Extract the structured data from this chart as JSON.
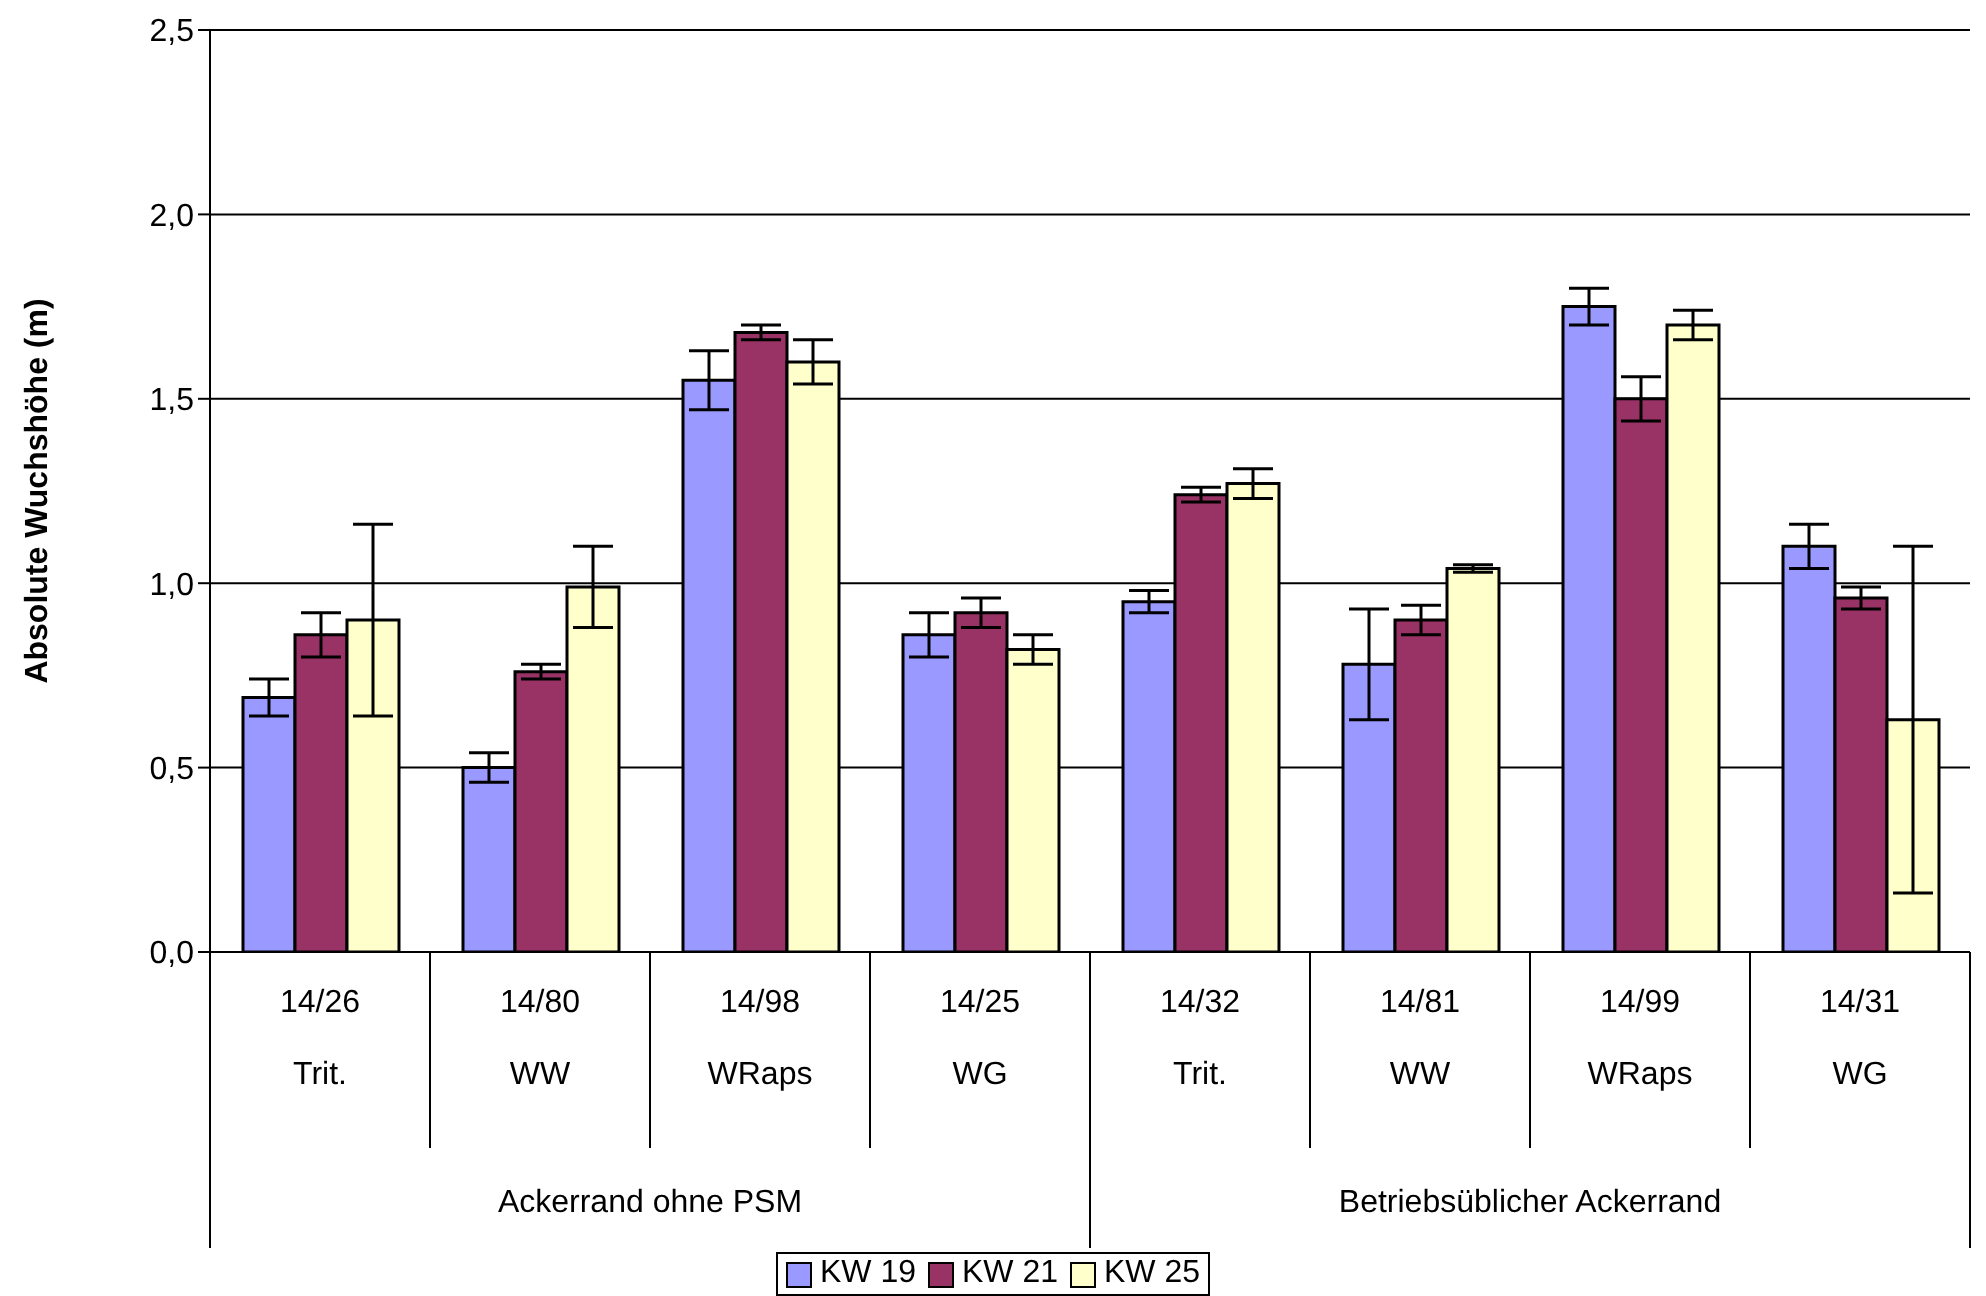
{
  "chart_data": {
    "type": "bar",
    "ylabel": "Absolute Wuchshöhe (m)",
    "categories": [
      "14/26\nTrit.",
      "14/80\nWW",
      "14/98\nWRaps",
      "14/25\nWG",
      "14/32\nTrit.",
      "14/81\nWW",
      "14/99\nWRaps",
      "14/31\nWG"
    ],
    "annotations": [
      "Ackerrand ohne PSM",
      "Betriebsüblicher Ackerrand"
    ],
    "series": [
      {
        "name": "KW 19",
        "color": "#9999ff",
        "values": [
          0.69,
          0.5,
          1.55,
          0.86,
          0.95,
          0.78,
          1.75,
          1.1
        ],
        "errors": [
          0.05,
          0.04,
          0.08,
          0.06,
          0.03,
          0.15,
          0.05,
          0.06
        ]
      },
      {
        "name": "KW 21",
        "color": "#993366",
        "values": [
          0.86,
          0.76,
          1.68,
          0.92,
          1.24,
          0.9,
          1.5,
          0.96
        ],
        "errors": [
          0.06,
          0.02,
          0.02,
          0.04,
          0.02,
          0.04,
          0.06,
          0.03
        ]
      },
      {
        "name": "KW 25",
        "color": "#ffffcc",
        "values": [
          0.9,
          0.99,
          1.6,
          0.82,
          1.27,
          1.04,
          1.7,
          0.63
        ],
        "errors": [
          0.26,
          0.11,
          0.06,
          0.04,
          0.04,
          0.01,
          0.04,
          0.47
        ]
      }
    ],
    "ylim": [
      0,
      2.5
    ],
    "yticks": [
      {
        "value": 0,
        "label": "0,0"
      },
      {
        "value": 0.5,
        "label": "0,5"
      },
      {
        "value": 1,
        "label": "1,0"
      },
      {
        "value": 1.5,
        "label": "1,5"
      },
      {
        "value": 2,
        "label": "2,0"
      },
      {
        "value": 2.5,
        "label": "2,5"
      }
    ],
    "grid": "y",
    "legend": "bottom"
  }
}
